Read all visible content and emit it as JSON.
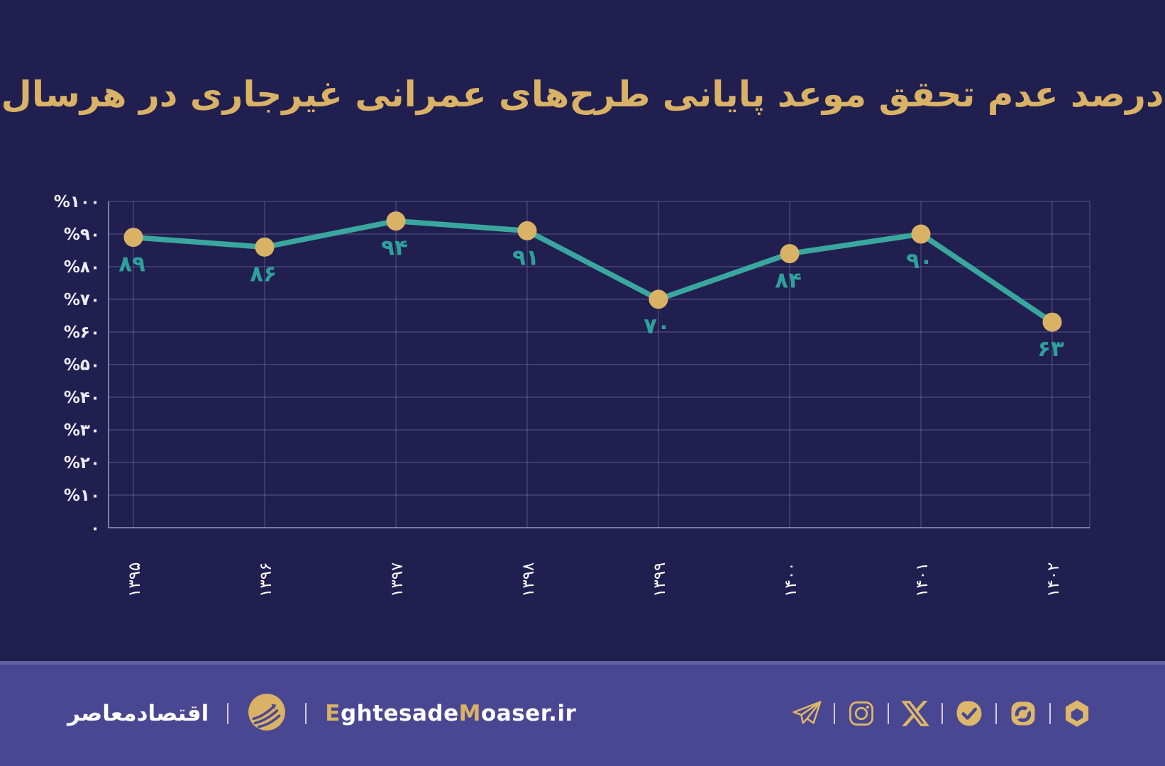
{
  "page": {
    "background_color": "#211f50",
    "footer_color": "#4a4792",
    "gold": "#d9b265",
    "teal": "#3aa79f"
  },
  "title": "درصد عدم تحقق موعد پایانی طرح‌های عمرانی غیرجاری در هرسال",
  "chart_data": {
    "type": "line",
    "title": "درصد عدم تحقق موعد پایانی طرح‌های عمرانی غیرجاری در هرسال",
    "categories": [
      "۱۳۹۵",
      "۱۳۹۶",
      "۱۳۹۷",
      "۱۳۹۸",
      "۱۳۹۹",
      "۱۴۰۰",
      "۱۴۰۱",
      "۱۴۰۲"
    ],
    "categories_latin": [
      "1395",
      "1396",
      "1397",
      "1398",
      "1399",
      "1400",
      "1401",
      "1402"
    ],
    "values": [
      89,
      86,
      94,
      91,
      70,
      84,
      90,
      63
    ],
    "point_labels": [
      "۸۹",
      "۸۶",
      "۹۴",
      "۹۱",
      "۷۰",
      "۸۴",
      "۹۰",
      "۶۳"
    ],
    "y_ticks": [
      100,
      90,
      80,
      70,
      60,
      50,
      40,
      30,
      20,
      10,
      0
    ],
    "y_tick_labels": [
      "%۱۰۰",
      "%۹۰",
      "%۸۰",
      "%۷۰",
      "%۶۰",
      "%۵۰",
      "%۴۰",
      "%۳۰",
      "%۲۰",
      "%۱۰",
      "۰"
    ],
    "ylim": [
      0,
      100
    ],
    "grid": true,
    "legend": "none",
    "line_color": "#3aa79f",
    "marker_color": "#d9b265",
    "point_label_color": "#2ea19a",
    "x_tick_rotation_deg": -90
  },
  "footer": {
    "brand_fa": "اقتصادمعاصر",
    "divider": "",
    "site": {
      "e": "E",
      "ghtesade": "ghtesade",
      "m": "M",
      "oaser": "oaser",
      "tld": ".ir"
    },
    "social_icons": [
      "telegram",
      "instagram",
      "x-twitter",
      "bale",
      "eitaa",
      "rubika"
    ]
  }
}
